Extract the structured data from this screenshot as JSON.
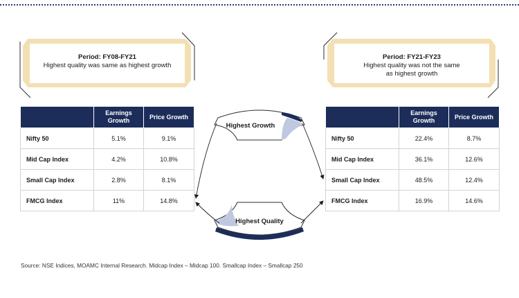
{
  "left_panel": {
    "period_title": "Period: FY08-FY21",
    "period_text": "Highest quality was same as highest growth",
    "headers": [
      "",
      "Earnings Growth",
      "Price Growth"
    ],
    "rows": [
      [
        "Nifty 50",
        "5.1%",
        "9.1%"
      ],
      [
        "Mid Cap Index",
        "4.2%",
        "10.8%"
      ],
      [
        "Small Cap Index",
        "2.8%",
        "8.1%"
      ],
      [
        "FMCG Index",
        "11%",
        "14.8%"
      ]
    ]
  },
  "right_panel": {
    "period_title": "Period: FY21-FY23",
    "period_text_line1": "Highest quality was not the same",
    "period_text_line2": "as highest growth",
    "headers": [
      "",
      "Earnings Growth",
      "Price Growth"
    ],
    "rows": [
      [
        "Nifty 50",
        "22.4%",
        "8.7%"
      ],
      [
        "Mid Cap Index",
        "36.1%",
        "12.6%"
      ],
      [
        "Small Cap Index",
        "48.5%",
        "12.4%"
      ],
      [
        "FMCG Index",
        "16.9%",
        "14.6%"
      ]
    ]
  },
  "center": {
    "top_label": "Highest Growth",
    "bottom_label": "Highest Quality"
  },
  "source": "Source: NSE Indices, MOAMC Internal Research. Midcap Index – Midcap 100. Smallcap Index – Smallcap 250",
  "colors": {
    "navy": "#1c2d5a",
    "cream_border": "#f3dfb3",
    "light_blue": "#bfc8de"
  }
}
